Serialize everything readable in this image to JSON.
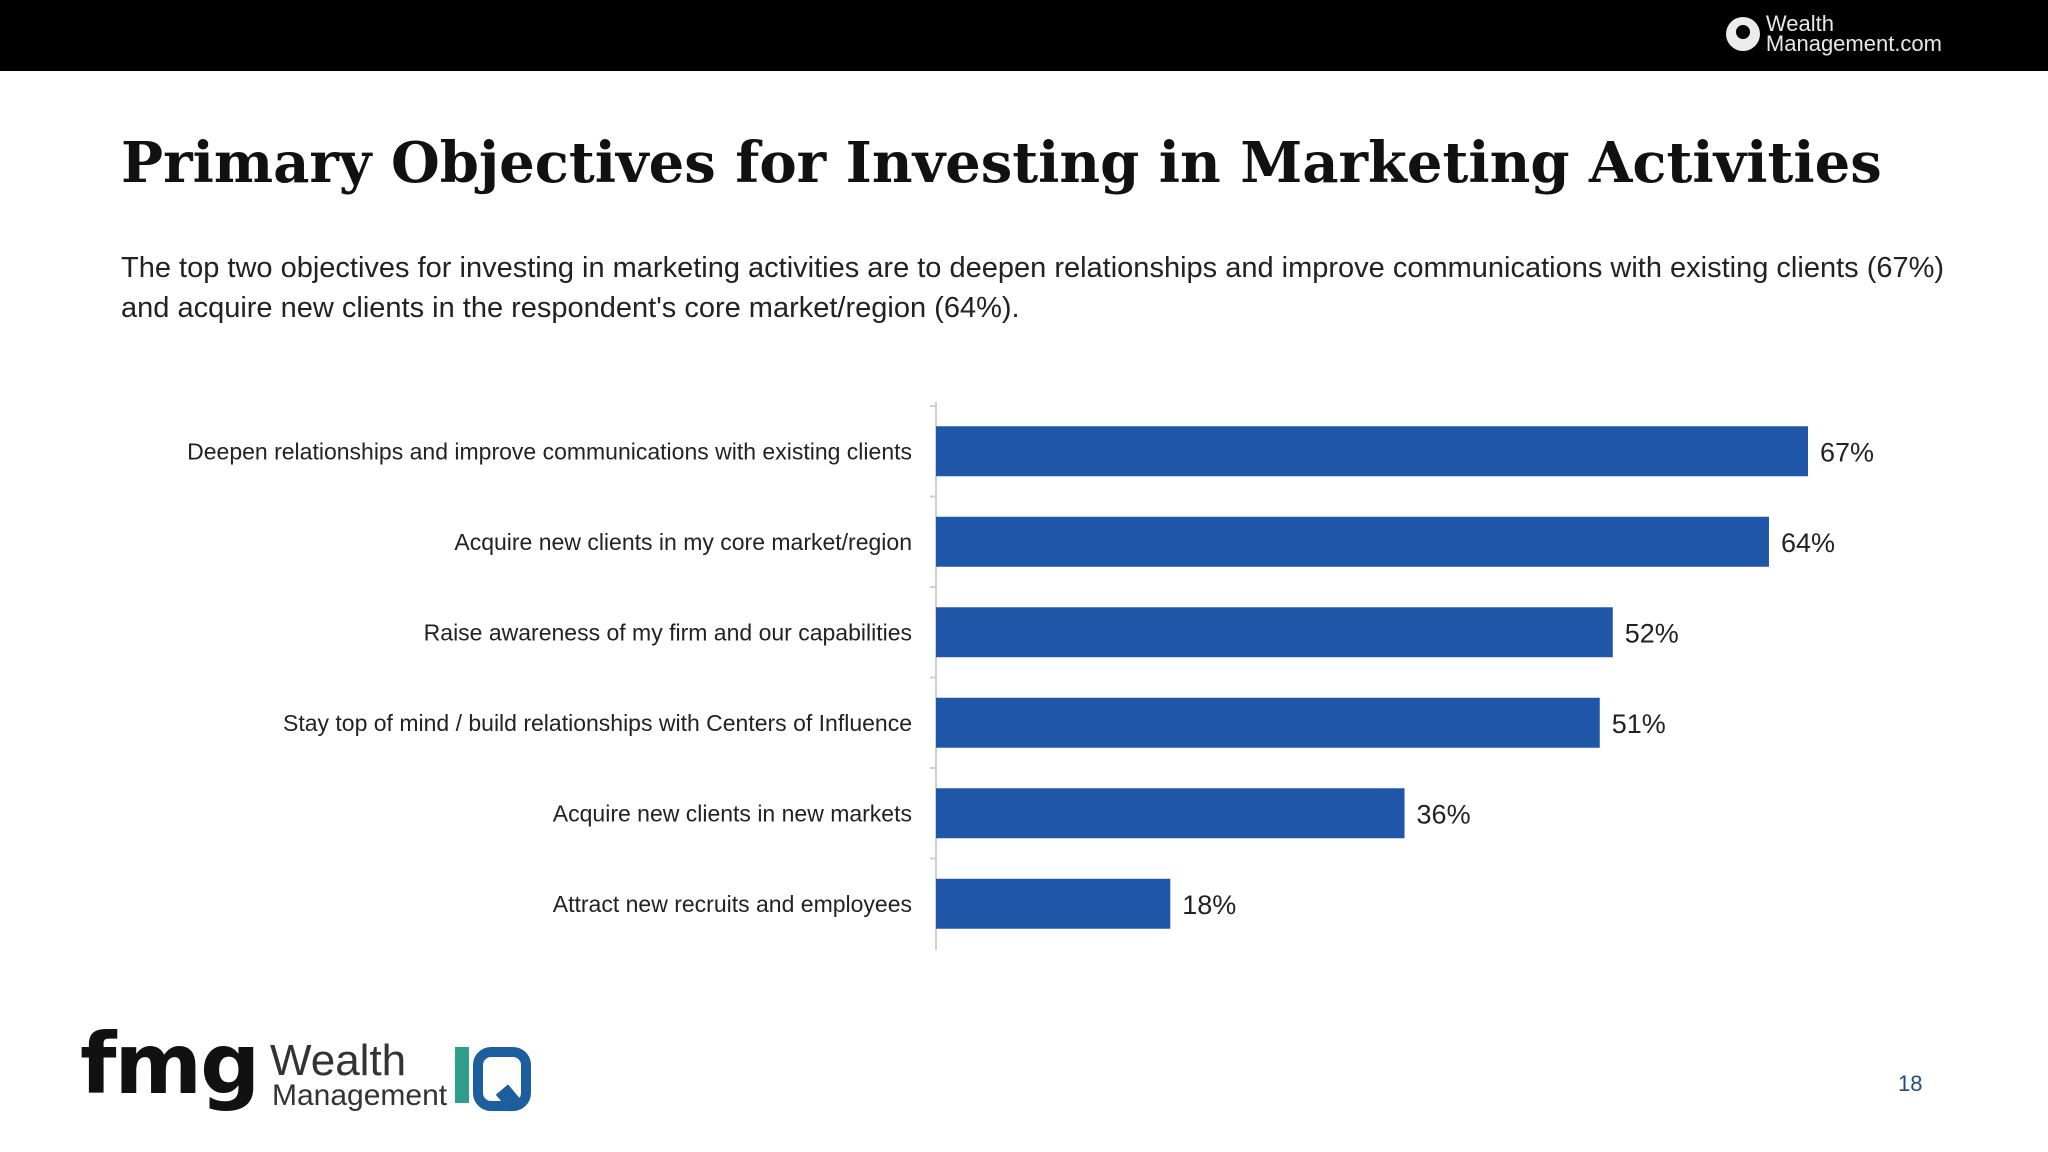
{
  "header": {
    "logo_line1": "Wealth",
    "logo_line2": "Management.com"
  },
  "title": "Primary Objectives for Investing in Marketing Activities",
  "subtitle": "The top two objectives for investing in marketing activities are to deepen relationships and improve communications with existing clients (67%) and acquire new clients in the respondent's core market/region (64%).",
  "chart_data": {
    "type": "bar",
    "orientation": "horizontal",
    "categories": [
      "Deepen relationships and improve communications with existing clients",
      "Acquire new clients in my core market/region",
      "Raise awareness of my firm and our capabilities",
      "Stay top of mind / build relationships with Centers of Influence",
      "Acquire new clients in new markets",
      "Attract new recruits and employees"
    ],
    "values": [
      67,
      64,
      52,
      51,
      36,
      18
    ],
    "data_labels": [
      "67%",
      "64%",
      "52%",
      "51%",
      "36%",
      "18%"
    ],
    "value_unit": "%",
    "xlim": [
      0,
      100
    ],
    "bar_color": "#1f56a8",
    "grid": false,
    "legend": "none"
  },
  "footer": {
    "fmg_logo": "fmg",
    "wm_line1": "Wealth",
    "wm_line2": "Management",
    "page_number": "18"
  }
}
